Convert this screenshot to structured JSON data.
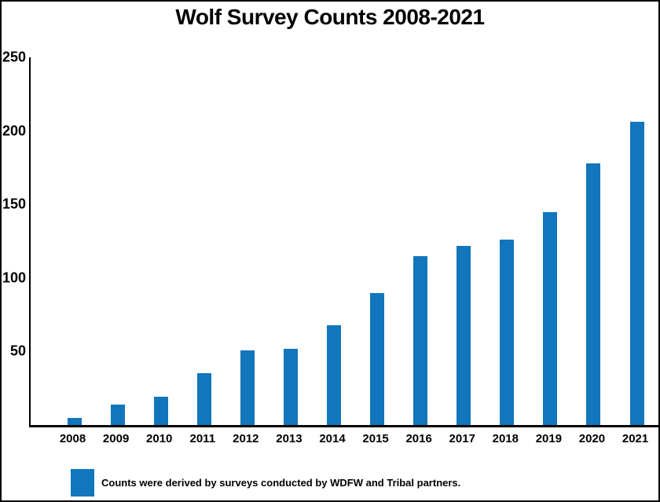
{
  "chart_data": {
    "type": "bar",
    "title": "Wolf Survey Counts 2008-2021",
    "categories": [
      "2008",
      "2009",
      "2010",
      "2011",
      "2012",
      "2013",
      "2014",
      "2015",
      "2016",
      "2017",
      "2018",
      "2019",
      "2020",
      "2021"
    ],
    "values": [
      5,
      14,
      19,
      35,
      51,
      52,
      68,
      90,
      115,
      122,
      126,
      145,
      178,
      206
    ],
    "xlabel": "",
    "ylabel": "",
    "ylim": [
      0,
      250
    ],
    "yticks": [
      50,
      100,
      150,
      200,
      250
    ],
    "grid": false,
    "bar_color": "#1276bc",
    "legend_position": "bottom-left",
    "legend": "Counts were derived by surveys conducted by WDFW and Tribal partners."
  }
}
